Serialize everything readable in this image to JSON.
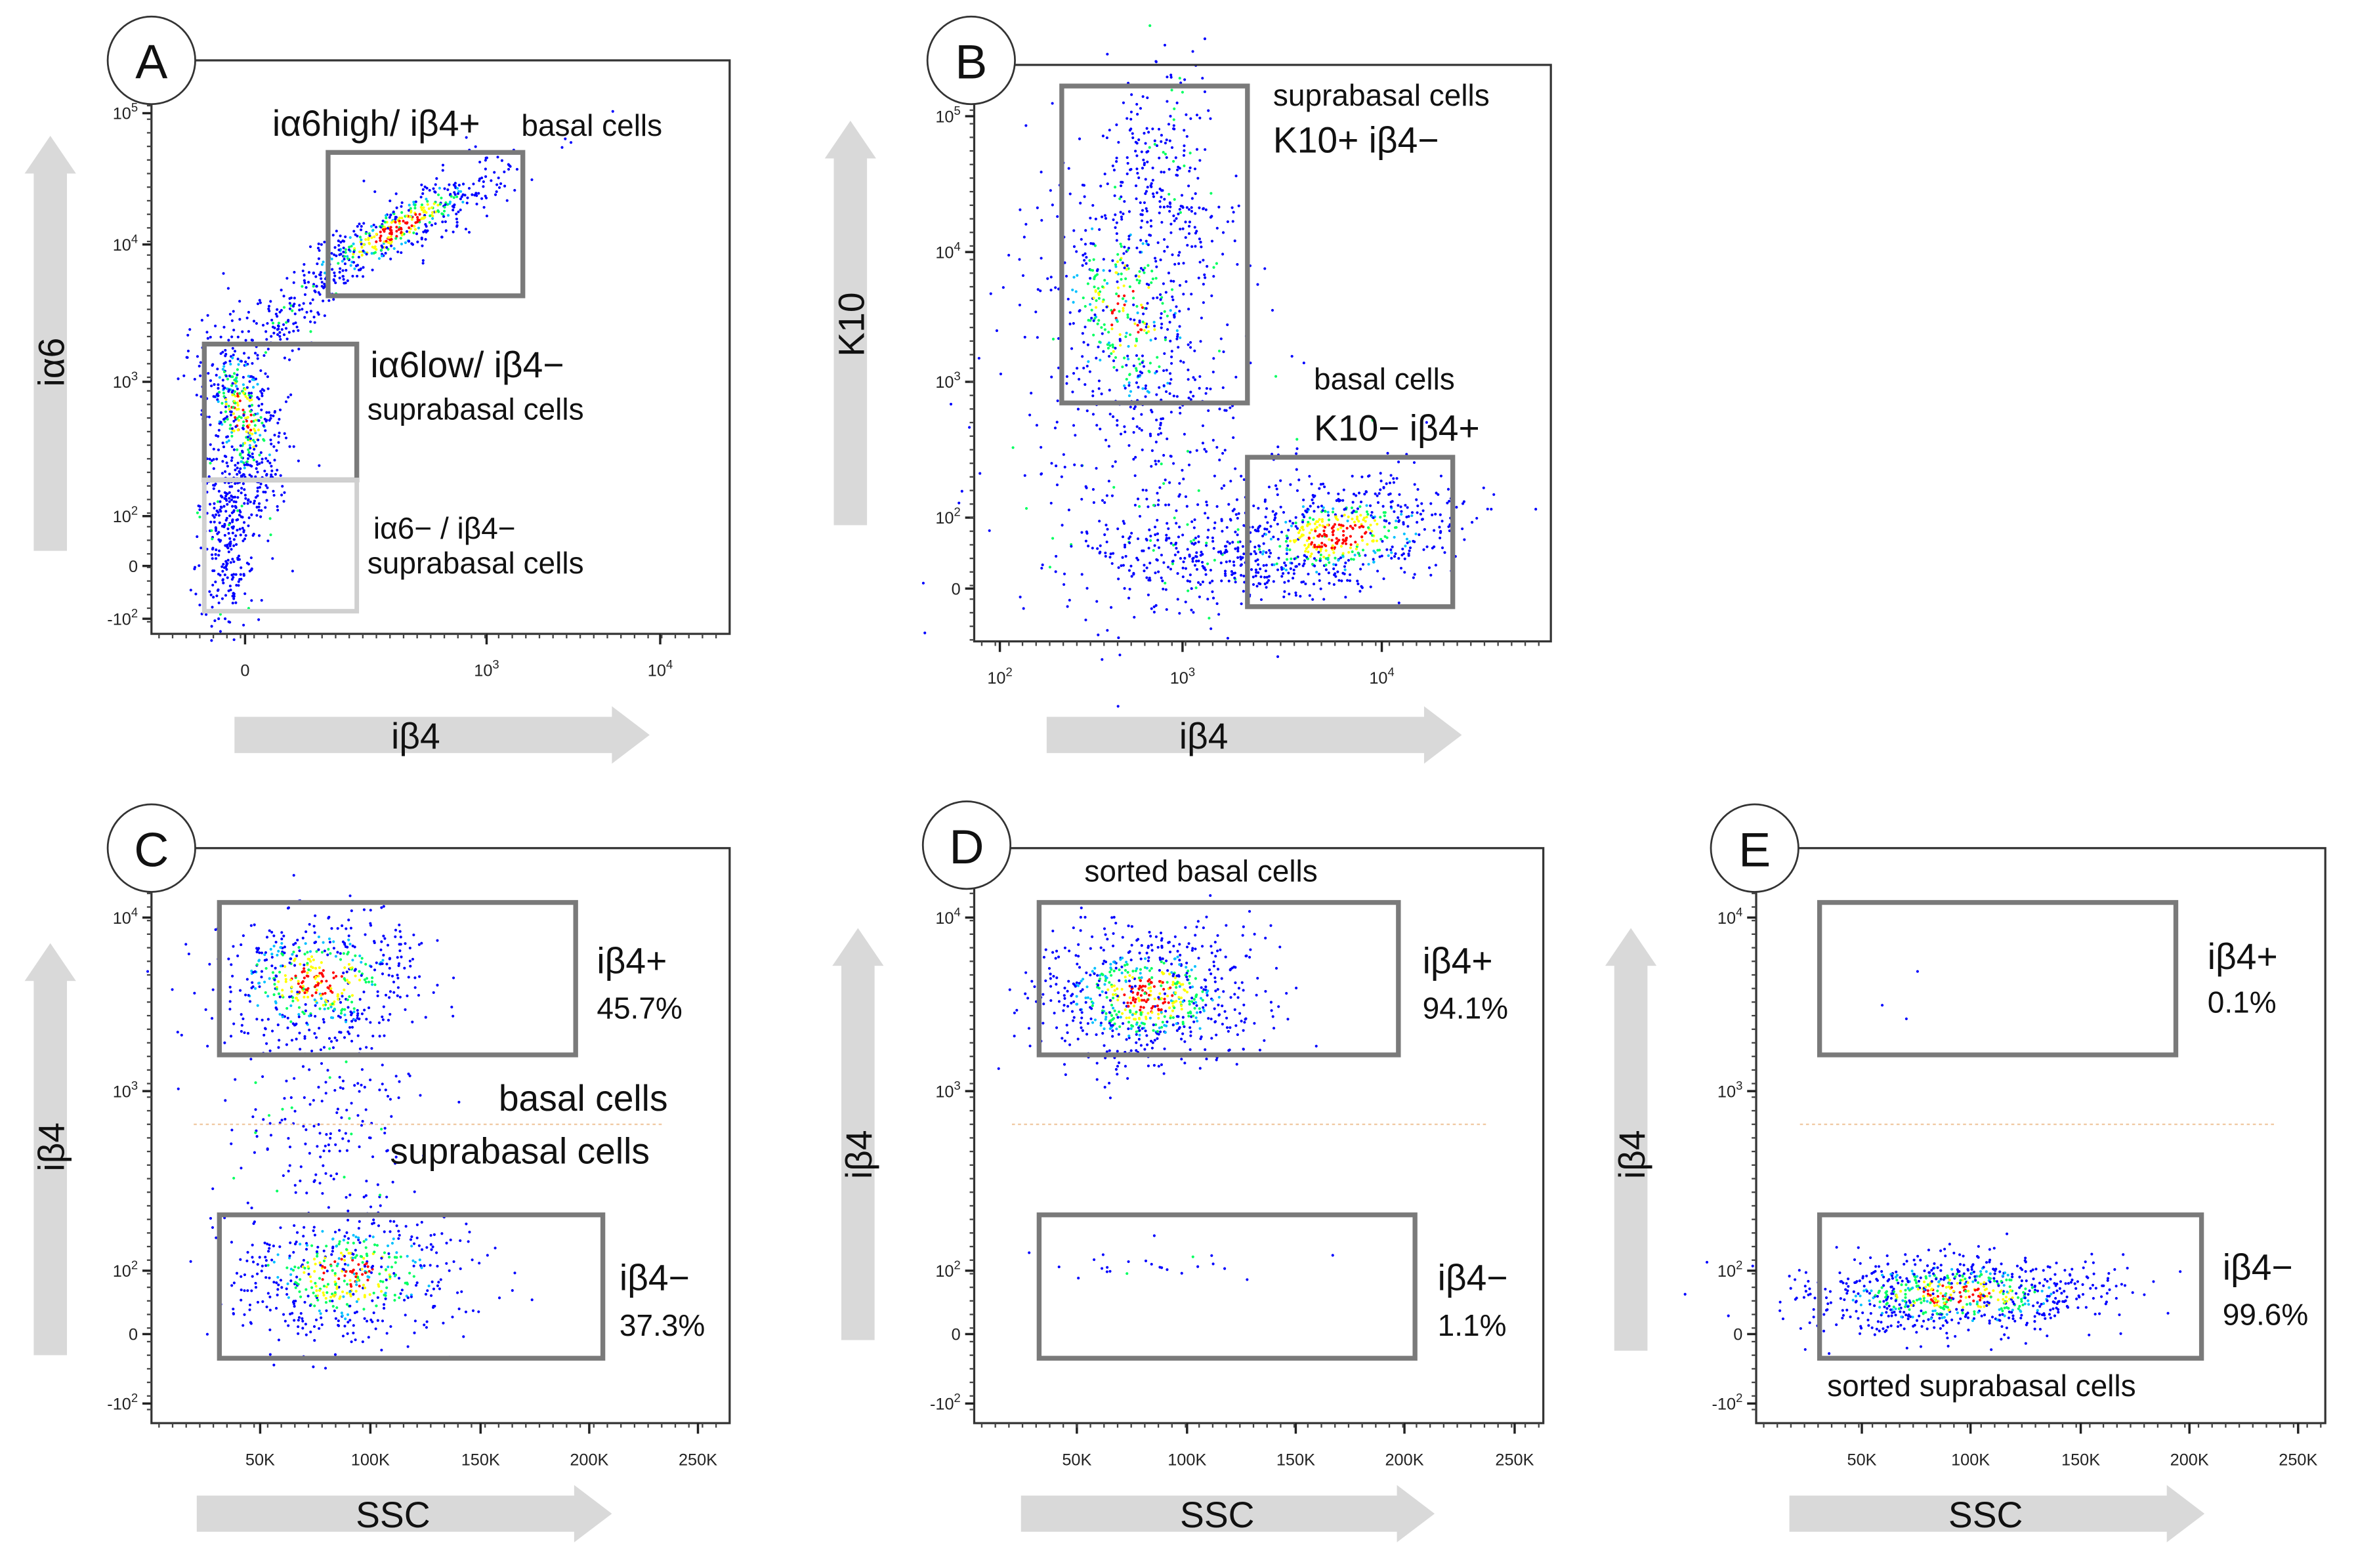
{
  "chart_data": [
    {
      "panel": "A",
      "type": "scatter",
      "xlabel": "iβ4",
      "ylabel": "iα6",
      "yticks": [
        "10^5",
        "10^4",
        "10^3",
        "10^2",
        "0",
        "-10^2"
      ],
      "xticks": [
        "0",
        "10^3",
        "10^4"
      ],
      "gates": [
        {
          "label": "iα6high/ iβ4+",
          "sub": "basal cells"
        },
        {
          "label": "iα6low/ iβ4−",
          "sub": "suprabasal cells"
        },
        {
          "label": "iα6− / iβ4−",
          "sub": "suprabasal cells"
        }
      ]
    },
    {
      "panel": "B",
      "type": "scatter",
      "xlabel": "iβ4",
      "ylabel": "K10",
      "yticks": [
        "10^5",
        "10^4",
        "10^3",
        "10^2",
        "0"
      ],
      "xticks": [
        "10^2",
        "10^3",
        "10^4"
      ],
      "gates": [
        {
          "label": "K10+ iβ4−",
          "sub": "suprabasal cells"
        },
        {
          "label": "K10− iβ4+",
          "sub": "basal cells"
        }
      ]
    },
    {
      "panel": "C",
      "type": "scatter",
      "xlabel": "SSC",
      "ylabel": "iβ4",
      "yticks": [
        "10^4",
        "10^3",
        "10^2",
        "0",
        "-10^2"
      ],
      "xticks": [
        "50K",
        "100K",
        "150K",
        "200K",
        "250K"
      ],
      "gates": [
        {
          "label": "iβ4+",
          "percent": "45.7%"
        },
        {
          "label": "iβ4−",
          "percent": "37.3%"
        }
      ],
      "annotations": [
        "basal cells",
        "suprabasal cells"
      ]
    },
    {
      "panel": "D",
      "type": "scatter",
      "xlabel": "SSC",
      "ylabel": "iβ4",
      "yticks": [
        "10^4",
        "10^3",
        "10^2",
        "0",
        "-10^2"
      ],
      "xticks": [
        "50K",
        "100K",
        "150K",
        "200K",
        "250K"
      ],
      "title": "sorted basal cells",
      "gates": [
        {
          "label": "iβ4+",
          "percent": "94.1%"
        },
        {
          "label": "iβ4−",
          "percent": "1.1%"
        }
      ]
    },
    {
      "panel": "E",
      "type": "scatter",
      "xlabel": "SSC",
      "ylabel": "iβ4",
      "yticks": [
        "10^4",
        "10^3",
        "10^2",
        "0",
        "-10^2"
      ],
      "xticks": [
        "50K",
        "100K",
        "150K",
        "200K",
        "250K"
      ],
      "title": "sorted suprabasal cells",
      "gates": [
        {
          "label": "iβ4+",
          "percent": "0.1%"
        },
        {
          "label": "iβ4−",
          "percent": "99.6%"
        }
      ]
    }
  ],
  "colors": {
    "gate": "#7a7a7a",
    "arrow": "#d9d9d9",
    "density": [
      "#0000ff",
      "#00c0ff",
      "#00ff60",
      "#ffff00",
      "#ff0000"
    ]
  }
}
